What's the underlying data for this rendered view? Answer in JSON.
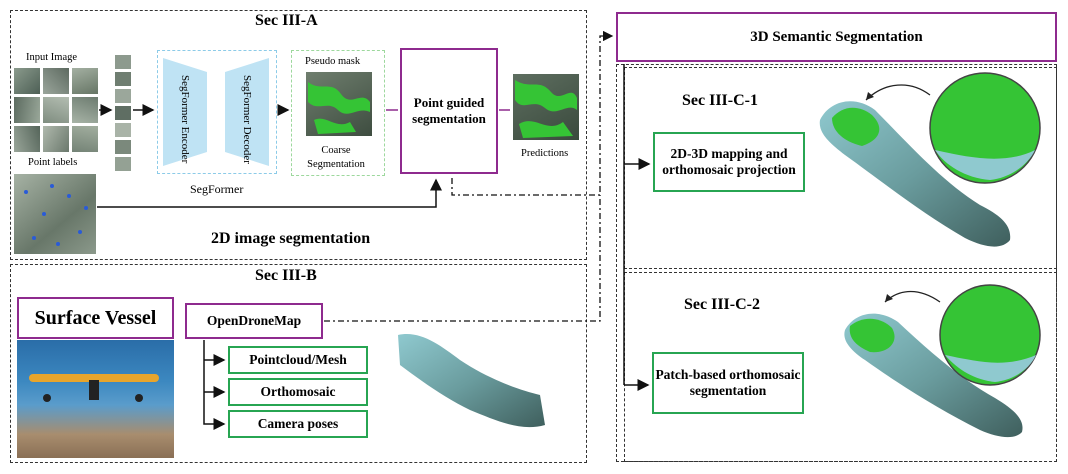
{
  "sec_a": {
    "title": "Sec III-A",
    "input_image_label": "Input Image",
    "point_labels_label": "Point labels",
    "encoder_label": "SegFormer Encoder",
    "decoder_label": "SegFormer Decoder",
    "segformer_label": "SegFormer",
    "pseudo_mask_label": "Pseudo mask",
    "coarse_label": "Coarse Segmentation",
    "point_guided_label": "Point guided segmentation",
    "predictions_label": "Predictions",
    "caption": "2D image segmentation"
  },
  "sec_b": {
    "title": "Sec III-B",
    "surface_vessel": "Surface Vessel",
    "odm": "OpenDroneMap",
    "outputs": [
      "Pointcloud/Mesh",
      "Orthomosaic",
      "Camera poses"
    ]
  },
  "sec_c": {
    "header": "3D Semantic Segmentation",
    "c1_title": "Sec III-C-1",
    "c1_box": "2D-3D mapping and orthomosaic projection",
    "c2_title": "Sec III-C-2",
    "c2_box": "Patch-based orthomosaic segmentation"
  },
  "colors": {
    "purple": "#8e2a8e",
    "green": "#27a552",
    "light_blue": "#bfe3f4",
    "mask_green": "#35c435"
  }
}
